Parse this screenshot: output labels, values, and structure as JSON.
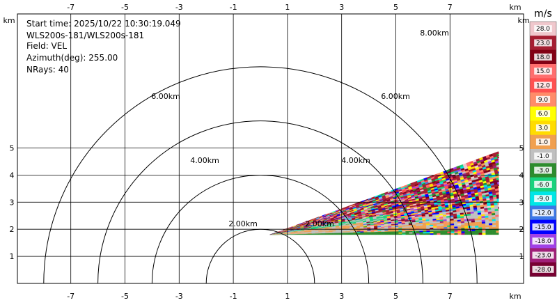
{
  "chart_data": {
    "type": "heatmap",
    "plot_kind": "RHI-style radar velocity scan (sector)",
    "info_lines": [
      "Start time: 2025/10/22 10:30:19.049",
      "WLS200s-181/WLS200s-181",
      "Field: VEL",
      "Azimuth(deg): 255.00",
      "NRays: 40"
    ],
    "x_unit": "km",
    "y_unit": "km",
    "x_ticks": [
      -7,
      -5,
      -3,
      -1,
      1,
      3,
      5,
      7
    ],
    "y_ticks": [
      1,
      2,
      3,
      4,
      5
    ],
    "xlim": [
      -8.0,
      9.0
    ],
    "ylim": [
      0.0,
      6.0
    ],
    "grid": true,
    "range_rings": [
      {
        "label": "2.00km",
        "radius_km": 2.0
      },
      {
        "label": "4.00km",
        "radius_km": 4.0
      },
      {
        "label": "6.00km",
        "radius_km": 6.0
      },
      {
        "label": "8.00km",
        "radius_km": 8.0
      }
    ],
    "radar_origin_km": [
      0.0,
      0.0
    ],
    "sector": {
      "apex_km": [
        0.35,
        1.8
      ],
      "end_x_km": 8.8,
      "elevation_start_deg": 0.0,
      "elevation_end_deg": 20.0,
      "nrays": 40
    },
    "colorbar": {
      "unit": "m/s",
      "labels": [
        "28.0",
        "23.0",
        "18.0",
        "15.0",
        "12.0",
        "9.0",
        "6.0",
        "3.0",
        "1.0",
        "-1.0",
        "-3.0",
        "-6.0",
        "-9.0",
        "-12.0",
        "-15.0",
        "-18.0",
        "-23.0",
        "-28.0"
      ],
      "colors": [
        "#f0c8cd",
        "#a51e32",
        "#820014",
        "#ff6e6e",
        "#ff5050",
        "#ff8c69",
        "#ffff00",
        "#ffdc00",
        "#f0a050",
        "#c0c0c0",
        "#2d8c2d",
        "#19d27d",
        "#00e6e6",
        "#3c78e6",
        "#0000ff",
        "#a040e6",
        "#a01e78",
        "#780032"
      ],
      "vmin": -28.0,
      "vmax": 28.0
    }
  }
}
